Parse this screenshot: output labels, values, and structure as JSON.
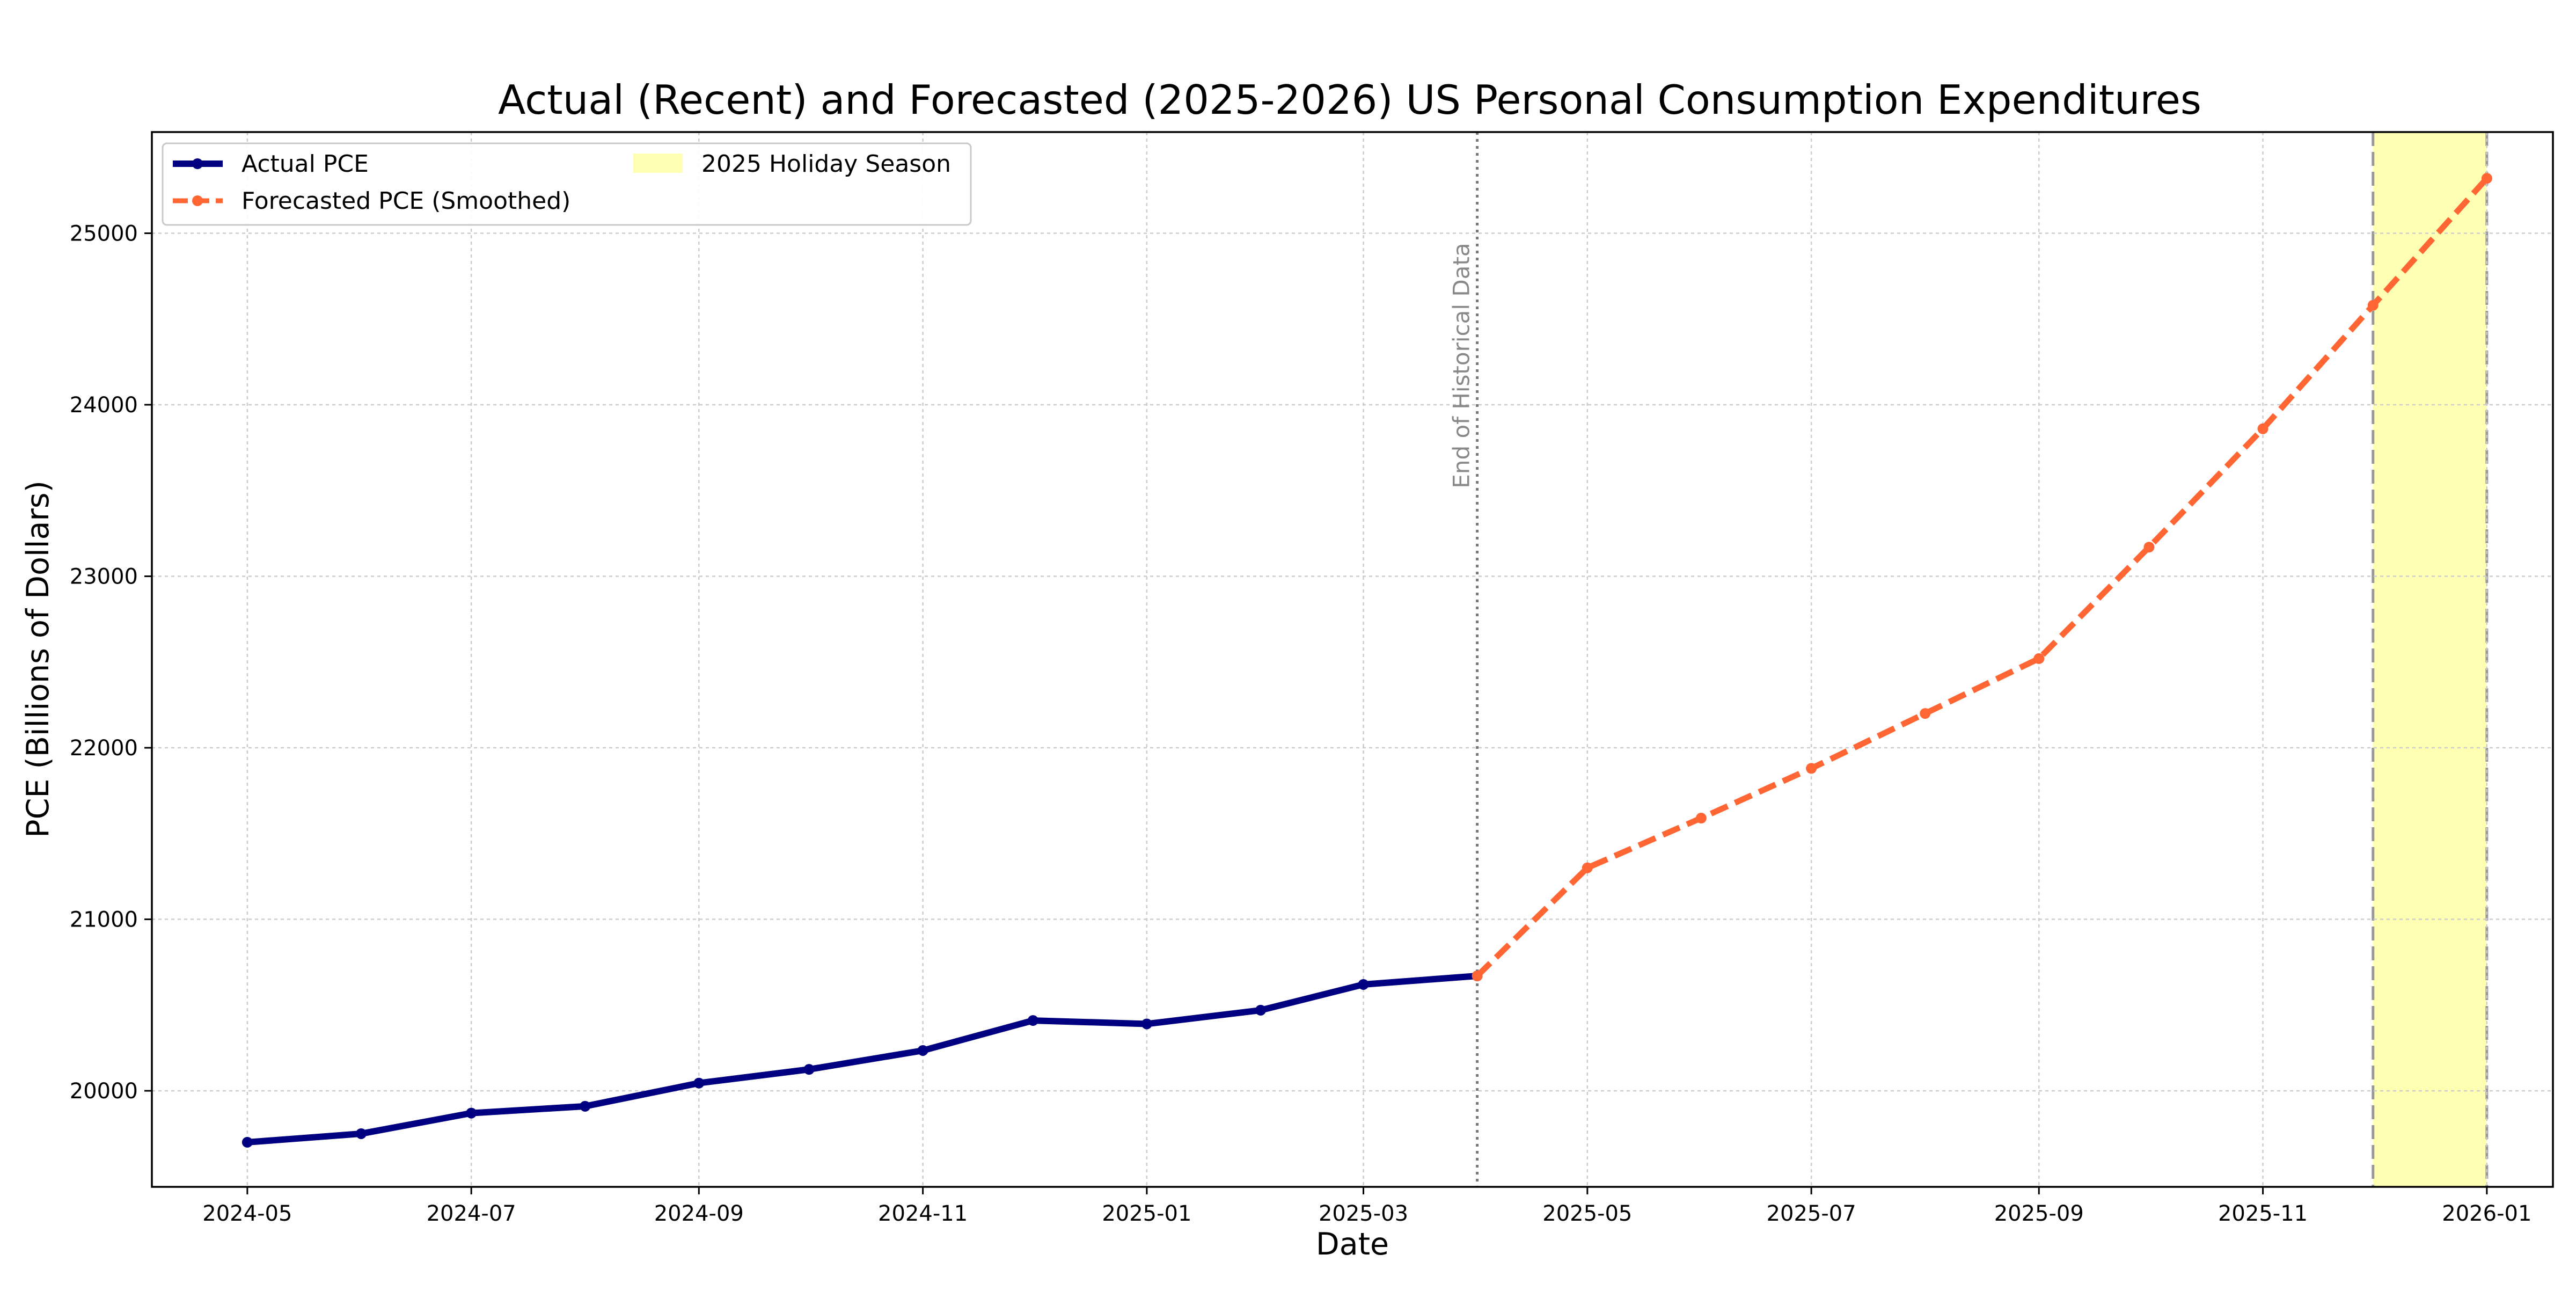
{
  "chart_data": {
    "type": "line",
    "title": "Actual (Recent) and Forecasted (2025-2026) US Personal Consumption Expenditures",
    "xlabel": "Date",
    "ylabel": "PCE (Billions of Dollars)",
    "grid": true,
    "legend_position": "top-left",
    "xlim": [
      "2024-04-05",
      "2026-01-19"
    ],
    "ylim": [
      19440,
      25590
    ],
    "x_ticks": [
      "2024-05",
      "2024-07",
      "2024-09",
      "2024-11",
      "2025-01",
      "2025-03",
      "2025-05",
      "2025-07",
      "2025-09",
      "2025-11",
      "2026-01"
    ],
    "y_ticks": [
      20000,
      21000,
      22000,
      23000,
      24000,
      25000
    ],
    "series": [
      {
        "name": "Actual PCE",
        "color": "#000080",
        "style": "solid",
        "points": [
          {
            "x": "2024-05-01",
            "y": 19700
          },
          {
            "x": "2024-06-01",
            "y": 19750
          },
          {
            "x": "2024-07-01",
            "y": 19870
          },
          {
            "x": "2024-08-01",
            "y": 19910
          },
          {
            "x": "2024-09-01",
            "y": 20045
          },
          {
            "x": "2024-10-01",
            "y": 20125
          },
          {
            "x": "2024-11-01",
            "y": 20235
          },
          {
            "x": "2024-12-01",
            "y": 20410
          },
          {
            "x": "2025-01-01",
            "y": 20390
          },
          {
            "x": "2025-02-01",
            "y": 20470
          },
          {
            "x": "2025-03-01",
            "y": 20620
          },
          {
            "x": "2025-04-01",
            "y": 20670
          }
        ]
      },
      {
        "name": "Forecasted PCE (Smoothed)",
        "color": "#FF6633",
        "style": "dashed",
        "points": [
          {
            "x": "2025-04-01",
            "y": 20670
          },
          {
            "x": "2025-05-01",
            "y": 21300
          },
          {
            "x": "2025-06-01",
            "y": 21590
          },
          {
            "x": "2025-07-01",
            "y": 21880
          },
          {
            "x": "2025-08-01",
            "y": 22200
          },
          {
            "x": "2025-09-01",
            "y": 22520
          },
          {
            "x": "2025-10-01",
            "y": 23170
          },
          {
            "x": "2025-11-01",
            "y": 23860
          },
          {
            "x": "2025-12-01",
            "y": 24580
          },
          {
            "x": "2026-01-01",
            "y": 25320
          }
        ]
      }
    ],
    "annotations": [
      {
        "type": "vline",
        "x": "2025-04-01",
        "label": "End of Historical Data",
        "color": "#777777",
        "style": "dotted"
      }
    ],
    "shaded_regions": [
      {
        "name": "2025 Holiday Season",
        "x_start": "2025-12-01",
        "x_end": "2026-01-01",
        "color": "#FFFFB3"
      }
    ]
  }
}
